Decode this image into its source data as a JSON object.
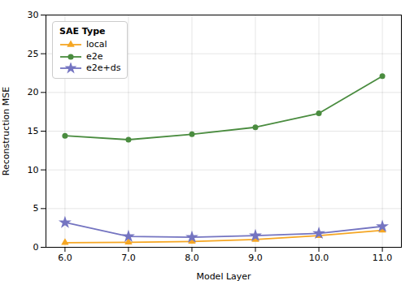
{
  "chart_data": {
    "type": "line",
    "xlabel": "Model Layer",
    "ylabel": "Reconstruction MSE",
    "x": [
      6,
      7,
      8,
      9,
      10,
      11
    ],
    "series": [
      {
        "name": "local",
        "color": "#f5a623",
        "marker": "triangle",
        "values": [
          0.6,
          0.65,
          0.75,
          1.0,
          1.5,
          2.2
        ]
      },
      {
        "name": "e2e",
        "color": "#4a8c3f",
        "marker": "circle",
        "values": [
          14.4,
          13.9,
          14.6,
          15.5,
          17.3,
          22.1
        ]
      },
      {
        "name": "e2e+ds",
        "color": "#7474c1",
        "marker": "star",
        "values": [
          3.2,
          1.4,
          1.3,
          1.5,
          1.8,
          2.7
        ]
      }
    ],
    "xlim": [
      5.7,
      11.3
    ],
    "xticks": [
      6,
      7,
      8,
      9,
      10,
      11
    ],
    "ylim": [
      0,
      30
    ],
    "yticks": [
      0,
      5,
      10,
      15,
      20,
      25,
      30
    ],
    "grid": true,
    "legend": "upper left",
    "legend_title": "SAE Type"
  }
}
